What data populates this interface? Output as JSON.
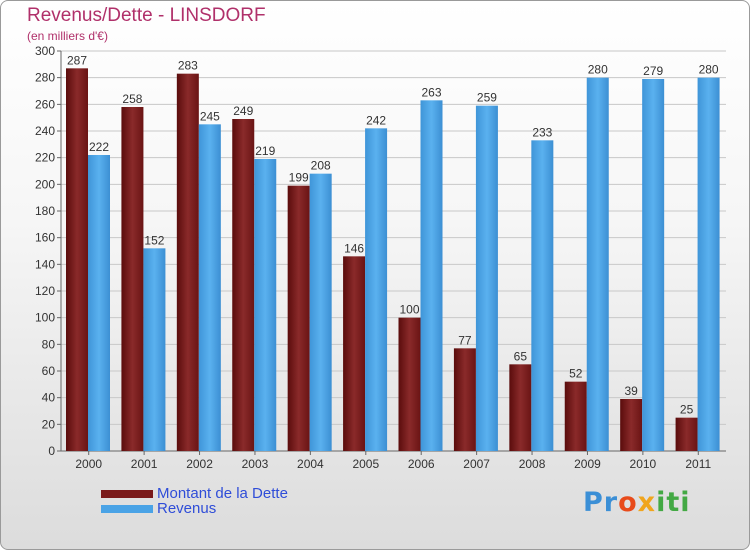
{
  "chart_data": {
    "type": "bar",
    "title": "Revenus/Dette - LINSDORF",
    "subtitle": "(en milliers d'€)",
    "categories": [
      "2000",
      "2001",
      "2002",
      "2003",
      "2004",
      "2005",
      "2006",
      "2007",
      "2008",
      "2009",
      "2010",
      "2011"
    ],
    "series": [
      {
        "name": "Montant de la Dette",
        "color": "#7a1a1a",
        "values": [
          287,
          258,
          283,
          249,
          199,
          146,
          100,
          77,
          65,
          52,
          39,
          25
        ]
      },
      {
        "name": "Revenus",
        "color": "#4aa3e6",
        "values": [
          222,
          152,
          245,
          219,
          208,
          242,
          263,
          259,
          233,
          280,
          279,
          280
        ]
      }
    ],
    "ylim": [
      0,
      300
    ],
    "yticks": [
      0,
      20,
      40,
      60,
      80,
      100,
      120,
      140,
      160,
      180,
      200,
      220,
      240,
      260,
      280,
      300
    ],
    "grid": true,
    "legend": "bottom-left"
  },
  "logo": {
    "text": [
      "Pr",
      "o",
      "x",
      "iti"
    ]
  }
}
